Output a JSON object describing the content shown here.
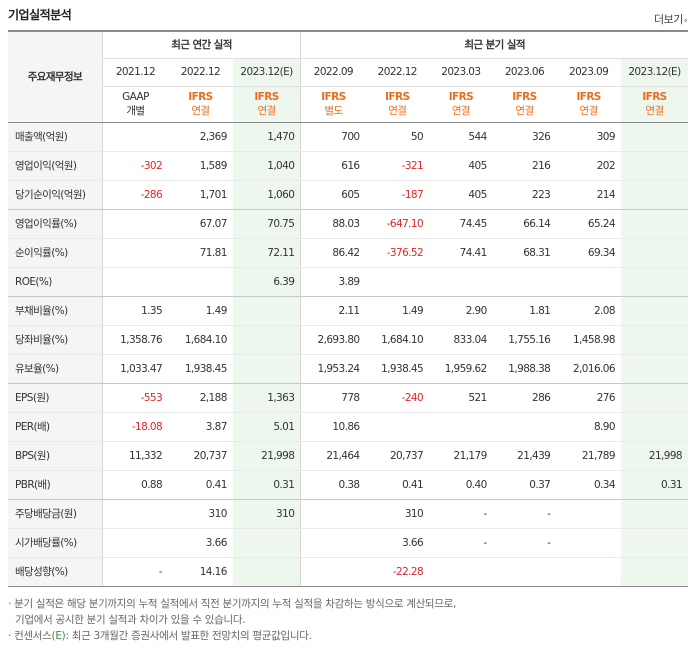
{
  "section_title": "기업실적분석",
  "more_label": "더보기",
  "more_arrow": "›",
  "header": {
    "corner_label": "주요재무정보",
    "annual_group": "최근 연간 실적",
    "quarter_group": "최근 분기 실적",
    "periods": [
      "2021.12",
      "2022.12",
      "2023.12(E)",
      "2022.09",
      "2022.12",
      "2023.03",
      "2023.06",
      "2023.09",
      "2023.12(E)"
    ],
    "accounts": [
      {
        "name": "GAAP",
        "sub": "개별"
      },
      {
        "name": "IFRS",
        "sub": "연결"
      },
      {
        "name": "IFRS",
        "sub": "연결"
      },
      {
        "name": "IFRS",
        "sub": "별도"
      },
      {
        "name": "IFRS",
        "sub": "연결"
      },
      {
        "name": "IFRS",
        "sub": "연결"
      },
      {
        "name": "IFRS",
        "sub": "연결"
      },
      {
        "name": "IFRS",
        "sub": "연결"
      },
      {
        "name": "IFRS",
        "sub": "연결"
      }
    ]
  },
  "rows": [
    {
      "label": "매출액(억원)",
      "values": [
        "",
        "2,369",
        "1,470",
        "700",
        "50",
        "544",
        "326",
        "309",
        ""
      ]
    },
    {
      "label": "영업이익(억원)",
      "values": [
        "-302",
        "1,589",
        "1,040",
        "616",
        "-321",
        "405",
        "216",
        "202",
        ""
      ]
    },
    {
      "label": "당기순이익(억원)",
      "values": [
        "-286",
        "1,701",
        "1,060",
        "605",
        "-187",
        "405",
        "223",
        "214",
        ""
      ]
    },
    {
      "label": "영업이익률(%)",
      "values": [
        "",
        "67.07",
        "70.75",
        "88.03",
        "-647.10",
        "74.45",
        "66.14",
        "65.24",
        ""
      ]
    },
    {
      "label": "순이익률(%)",
      "values": [
        "",
        "71.81",
        "72.11",
        "86.42",
        "-376.52",
        "74.41",
        "68.31",
        "69.34",
        ""
      ]
    },
    {
      "label": "ROE(%)",
      "values": [
        "",
        "",
        "6.39",
        "3.89",
        "",
        "",
        "",
        "",
        ""
      ]
    },
    {
      "label": "부채비율(%)",
      "values": [
        "1.35",
        "1.49",
        "",
        "2.11",
        "1.49",
        "2.90",
        "1.81",
        "2.08",
        ""
      ]
    },
    {
      "label": "당좌비율(%)",
      "values": [
        "1,358.76",
        "1,684.10",
        "",
        "2,693.80",
        "1,684.10",
        "833.04",
        "1,755.16",
        "1,458.98",
        ""
      ]
    },
    {
      "label": "유보율(%)",
      "values": [
        "1,033.47",
        "1,938.45",
        "",
        "1,953.24",
        "1,938.45",
        "1,959.62",
        "1,988.38",
        "2,016.06",
        ""
      ]
    },
    {
      "label": "EPS(원)",
      "values": [
        "-553",
        "2,188",
        "1,363",
        "778",
        "-240",
        "521",
        "286",
        "276",
        ""
      ]
    },
    {
      "label": "PER(배)",
      "values": [
        "-18.08",
        "3.87",
        "5.01",
        "10.86",
        "",
        "",
        "",
        "8.90",
        ""
      ]
    },
    {
      "label": "BPS(원)",
      "values": [
        "11,332",
        "20,737",
        "21,998",
        "21,464",
        "20,737",
        "21,179",
        "21,439",
        "21,789",
        "21,998"
      ]
    },
    {
      "label": "PBR(배)",
      "values": [
        "0.88",
        "0.41",
        "0.31",
        "0.38",
        "0.41",
        "0.40",
        "0.37",
        "0.34",
        "0.31"
      ]
    },
    {
      "label": "주당배당금(원)",
      "values": [
        "",
        "310",
        "310",
        "",
        "310",
        "-",
        "-",
        "",
        ""
      ]
    },
    {
      "label": "시가배당률(%)",
      "values": [
        "",
        "3.66",
        "",
        "",
        "3.66",
        "-",
        "-",
        "",
        ""
      ]
    },
    {
      "label": "배당성향(%)",
      "values": [
        "-",
        "14.16",
        "",
        "",
        "-22.28",
        "",
        "",
        "",
        ""
      ]
    }
  ],
  "notes": {
    "line1": "분기 실적은 해당 분기까지의 누적 실적에서 직전 분기까지의 누적 실적을 차감하는 방식으로 계산되므로,",
    "line1b": "기업에서 공시한 분기 실적과 차이가 있을 수 있습니다.",
    "line2_prefix": "컨센서스",
    "line2_mark": "(E)",
    "line2_suffix": ": 최근 3개월간 증권사에서 발표한 전망치의 평균값입니다."
  },
  "colors": {
    "negative": "#e0262b",
    "ifrs": "#ec6e1d",
    "estimate_bg": "#eef7ee"
  }
}
